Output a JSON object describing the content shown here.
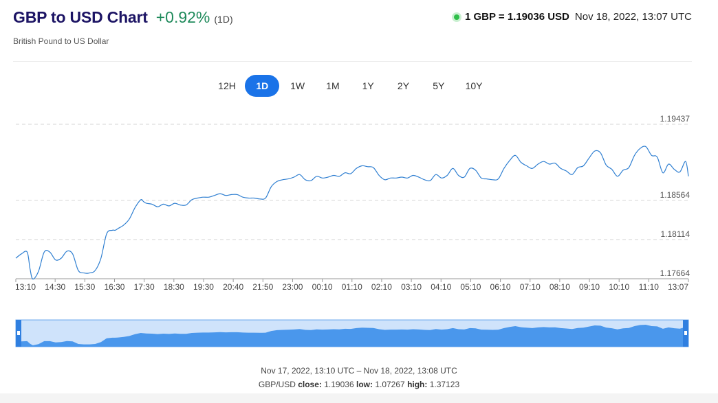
{
  "header": {
    "title": "GBP to USD Chart",
    "change": "+0.92%",
    "period": "(1D)",
    "subtitle": "British Pound to US Dollar"
  },
  "rate": {
    "value": "1 GBP = 1.19036 USD",
    "time": "Nov 18, 2022, 13:07 UTC"
  },
  "tabs": [
    {
      "label": "12H",
      "active": false
    },
    {
      "label": "1D",
      "active": true
    },
    {
      "label": "1W",
      "active": false
    },
    {
      "label": "1M",
      "active": false
    },
    {
      "label": "1Y",
      "active": false
    },
    {
      "label": "2Y",
      "active": false
    },
    {
      "label": "5Y",
      "active": false
    },
    {
      "label": "10Y",
      "active": false
    }
  ],
  "chart_data": {
    "type": "line",
    "x_ticks": [
      "13:10",
      "14:30",
      "15:30",
      "16:30",
      "17:30",
      "18:30",
      "19:30",
      "20:40",
      "21:50",
      "23:00",
      "00:10",
      "01:10",
      "02:10",
      "03:10",
      "04:10",
      "05:10",
      "06:10",
      "07:10",
      "08:10",
      "09:10",
      "10:10",
      "11:10",
      "13:07"
    ],
    "y_ticks": [
      1.17664,
      1.18114,
      1.18564,
      1.19437
    ],
    "ylim": [
      1.17664,
      1.19437
    ],
    "series": [
      {
        "color": "#2f7fd1",
        "x": [
          0,
          2,
          4,
          5,
          6,
          8,
          10,
          12,
          14,
          16,
          18,
          20,
          22,
          24,
          26,
          28,
          30,
          32,
          34,
          35,
          36,
          38,
          40,
          42,
          44,
          45,
          46,
          48,
          50,
          52,
          54,
          56,
          58,
          60,
          62,
          64,
          66,
          68,
          70,
          72,
          74,
          76,
          78,
          80,
          82,
          84,
          86,
          88,
          90,
          92,
          94,
          96,
          98,
          100,
          102,
          104,
          106,
          108,
          110,
          112,
          114,
          116,
          118,
          120,
          122,
          124,
          126,
          128,
          130,
          132,
          134,
          136,
          138,
          140,
          142,
          144,
          146,
          148,
          150,
          152,
          154,
          156,
          158,
          160,
          162,
          164,
          166,
          168,
          170,
          172,
          174,
          176,
          178,
          180,
          182,
          184,
          186,
          188,
          190,
          192,
          194,
          196,
          198,
          200,
          202,
          204,
          206,
          208,
          210,
          212,
          214,
          216,
          218,
          220,
          222,
          224,
          226,
          228,
          230,
          232,
          234,
          236,
          237
        ],
        "values": [
          1.179,
          1.1795,
          1.1797,
          1.1778,
          1.1766,
          1.1775,
          1.1797,
          1.1797,
          1.1788,
          1.179,
          1.1798,
          1.1795,
          1.1776,
          1.1773,
          1.1773,
          1.1776,
          1.179,
          1.1818,
          1.1822,
          1.1822,
          1.1824,
          1.1828,
          1.1835,
          1.1848,
          1.1857,
          1.1855,
          1.1853,
          1.1852,
          1.1849,
          1.1852,
          1.185,
          1.1853,
          1.1851,
          1.1851,
          1.1857,
          1.1859,
          1.186,
          1.186,
          1.1862,
          1.1864,
          1.1862,
          1.1863,
          1.1863,
          1.186,
          1.1859,
          1.1859,
          1.1858,
          1.1859,
          1.1872,
          1.1878,
          1.188,
          1.1881,
          1.1883,
          1.1886,
          1.188,
          1.1879,
          1.1884,
          1.1882,
          1.1883,
          1.1885,
          1.1884,
          1.1888,
          1.1887,
          1.1893,
          1.1896,
          1.1895,
          1.1894,
          1.1885,
          1.188,
          1.1882,
          1.1882,
          1.1883,
          1.1882,
          1.1885,
          1.1883,
          1.188,
          1.1879,
          1.1886,
          1.1882,
          1.1885,
          1.1893,
          1.1885,
          1.1883,
          1.1893,
          1.1891,
          1.1882,
          1.1881,
          1.188,
          1.1881,
          1.1893,
          1.1902,
          1.1908,
          1.19,
          1.1896,
          1.1893,
          1.1898,
          1.1901,
          1.1898,
          1.1899,
          1.1893,
          1.189,
          1.1886,
          1.1894,
          1.1896,
          1.1905,
          1.1913,
          1.1911,
          1.1897,
          1.1892,
          1.1884,
          1.1891,
          1.1894,
          1.1908,
          1.1916,
          1.1918,
          1.1908,
          1.1906,
          1.1888,
          1.1898,
          1.1892,
          1.1889,
          1.1901,
          1.1884
        ]
      }
    ],
    "grid": "horizontal dashed"
  },
  "footer": {
    "range": "Nov 17, 2022, 13:10 UTC – Nov 18, 2022, 13:08 UTC",
    "pair_label": "GBP/USD",
    "close_label": "close:",
    "close_value": "1.19036",
    "low_label": "low:",
    "low_value": "1.07267",
    "high_label": "high:",
    "high_value": "1.37123"
  }
}
